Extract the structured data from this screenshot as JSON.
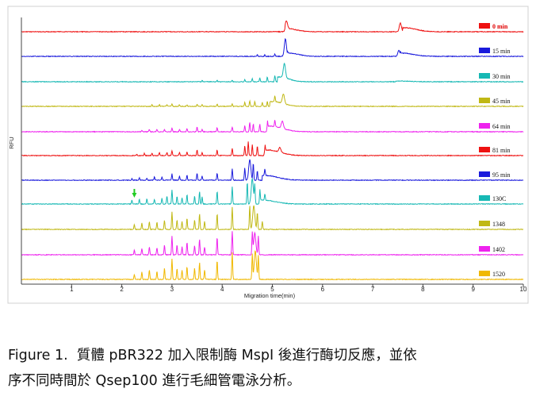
{
  "chart_data": {
    "type": "line",
    "xlabel": "Migration time(min)",
    "ylabel": "RFU",
    "xlim": [
      0,
      10
    ],
    "x_ticks": [
      "1",
      "2",
      "3",
      "4",
      "5",
      "6",
      "7",
      "8",
      "9",
      "10"
    ],
    "grid": false,
    "legend_position": "right",
    "series": [
      {
        "name": "0 min",
        "color": "#ee1111",
        "swatch": "#ee1111",
        "peaks": [
          [
            5.28,
            10
          ],
          [
            7.55,
            11
          ]
        ],
        "spikes": [],
        "bumps": [
          [
            5.3,
            0.25,
            4
          ],
          [
            7.65,
            0.3,
            5
          ]
        ]
      },
      {
        "name": "15 min",
        "color": "#1a1adc",
        "swatch": "#1a1adc",
        "peaks": [
          [
            5.26,
            22
          ],
          [
            7.52,
            8
          ]
        ],
        "spikes": [
          [
            4.7,
            2
          ],
          [
            4.85,
            2
          ],
          [
            5.05,
            3
          ]
        ],
        "bumps": [
          [
            5.35,
            0.25,
            4
          ],
          [
            7.6,
            0.3,
            4
          ]
        ]
      },
      {
        "name": "30 min",
        "color": "#16b8b4",
        "swatch": "#16b8b4",
        "peaks": [
          [
            5.24,
            18
          ]
        ],
        "spikes": [
          [
            3.6,
            2
          ],
          [
            3.9,
            2
          ],
          [
            4.2,
            2
          ],
          [
            4.45,
            3
          ],
          [
            4.6,
            4
          ],
          [
            4.75,
            5
          ],
          [
            4.9,
            6
          ],
          [
            5.05,
            8
          ]
        ],
        "bumps": [
          [
            5.15,
            0.25,
            6
          ],
          [
            7.5,
            0.3,
            1
          ]
        ]
      },
      {
        "name": "45 min",
        "color": "#c0b814",
        "swatch": "#c0b814",
        "peaks": [
          [
            5.22,
            12
          ]
        ],
        "spikes": [
          [
            2.6,
            2
          ],
          [
            2.75,
            2
          ],
          [
            2.9,
            2
          ],
          [
            3.0,
            3
          ],
          [
            3.15,
            2
          ],
          [
            3.3,
            2
          ],
          [
            3.5,
            3
          ],
          [
            3.6,
            2
          ],
          [
            3.9,
            3
          ],
          [
            4.2,
            3
          ],
          [
            4.45,
            5
          ],
          [
            4.55,
            7
          ],
          [
            4.65,
            6
          ],
          [
            4.8,
            5
          ],
          [
            4.9,
            6
          ],
          [
            5.05,
            8
          ]
        ],
        "bumps": [
          [
            5.0,
            0.3,
            6
          ]
        ]
      },
      {
        "name": "64 min",
        "color": "#ee22ee",
        "swatch": "#ee22ee",
        "peaks": [
          [
            5.2,
            9
          ]
        ],
        "spikes": [
          [
            2.4,
            2
          ],
          [
            2.55,
            3
          ],
          [
            2.7,
            3
          ],
          [
            2.85,
            3
          ],
          [
            3.0,
            5
          ],
          [
            3.15,
            3
          ],
          [
            3.3,
            4
          ],
          [
            3.5,
            6
          ],
          [
            3.6,
            3
          ],
          [
            3.9,
            5
          ],
          [
            4.2,
            6
          ],
          [
            4.45,
            8
          ],
          [
            4.55,
            12
          ],
          [
            4.62,
            10
          ],
          [
            4.75,
            10
          ],
          [
            4.9,
            8
          ],
          [
            5.05,
            8
          ]
        ],
        "bumps": [
          [
            4.95,
            0.35,
            7
          ]
        ]
      },
      {
        "name": "81 min",
        "color": "#ee1111",
        "swatch": "#ee1111",
        "peaks": [
          [
            5.15,
            6
          ]
        ],
        "spikes": [
          [
            2.3,
            2
          ],
          [
            2.45,
            3
          ],
          [
            2.6,
            3
          ],
          [
            2.75,
            4
          ],
          [
            2.9,
            4
          ],
          [
            3.0,
            6
          ],
          [
            3.15,
            4
          ],
          [
            3.3,
            5
          ],
          [
            3.5,
            7
          ],
          [
            3.6,
            4
          ],
          [
            3.9,
            7
          ],
          [
            4.2,
            9
          ],
          [
            4.45,
            12
          ],
          [
            4.52,
            18
          ],
          [
            4.6,
            14
          ],
          [
            4.7,
            12
          ],
          [
            4.85,
            9
          ]
        ],
        "bumps": [
          [
            4.9,
            0.35,
            7
          ]
        ]
      },
      {
        "name": "95 min",
        "color": "#1a1adc",
        "swatch": "#1a1adc",
        "peaks": [
          [
            4.55,
            26
          ]
        ],
        "spikes": [
          [
            2.2,
            2
          ],
          [
            2.35,
            3
          ],
          [
            2.5,
            3
          ],
          [
            2.65,
            4
          ],
          [
            2.8,
            4
          ],
          [
            3.0,
            8
          ],
          [
            3.15,
            5
          ],
          [
            3.3,
            6
          ],
          [
            3.5,
            9
          ],
          [
            3.6,
            5
          ],
          [
            3.9,
            9
          ],
          [
            4.2,
            14
          ],
          [
            4.45,
            16
          ],
          [
            4.62,
            22
          ],
          [
            4.7,
            12
          ],
          [
            4.85,
            8
          ]
        ],
        "bumps": [
          [
            4.85,
            0.35,
            6
          ]
        ]
      },
      {
        "name": "130C",
        "color": "#16b8b4",
        "swatch": "#16b8b4",
        "peaks": [
          [
            4.6,
            32
          ]
        ],
        "spikes": [
          [
            2.2,
            5
          ],
          [
            2.35,
            6
          ],
          [
            2.5,
            7
          ],
          [
            2.65,
            6
          ],
          [
            2.8,
            7
          ],
          [
            2.9,
            10
          ],
          [
            3.0,
            18
          ],
          [
            3.1,
            10
          ],
          [
            3.2,
            8
          ],
          [
            3.3,
            12
          ],
          [
            3.45,
            10
          ],
          [
            3.55,
            16
          ],
          [
            3.6,
            9
          ],
          [
            3.9,
            16
          ],
          [
            4.2,
            22
          ],
          [
            4.5,
            28
          ],
          [
            4.65,
            24
          ],
          [
            4.75,
            14
          ],
          [
            4.85,
            8
          ]
        ],
        "bumps": [
          [
            4.8,
            0.35,
            5
          ]
        ]
      },
      {
        "name": "1348",
        "color": "#c0b814",
        "swatch": "#c0b814",
        "peaks": [
          [
            4.63,
            30
          ]
        ],
        "spikes": [
          [
            2.25,
            6
          ],
          [
            2.4,
            8
          ],
          [
            2.55,
            10
          ],
          [
            2.7,
            9
          ],
          [
            2.85,
            12
          ],
          [
            3.0,
            22
          ],
          [
            3.1,
            12
          ],
          [
            3.2,
            10
          ],
          [
            3.3,
            14
          ],
          [
            3.45,
            12
          ],
          [
            3.55,
            20
          ],
          [
            3.65,
            10
          ],
          [
            3.9,
            20
          ],
          [
            4.2,
            28
          ],
          [
            4.55,
            30
          ],
          [
            4.7,
            22
          ],
          [
            4.8,
            10
          ]
        ],
        "bumps": []
      },
      {
        "name": "1402",
        "color": "#ee22ee",
        "swatch": "#ee22ee",
        "peaks": [
          [
            4.65,
            28
          ]
        ],
        "spikes": [
          [
            2.25,
            6
          ],
          [
            2.4,
            8
          ],
          [
            2.55,
            10
          ],
          [
            2.7,
            9
          ],
          [
            2.85,
            12
          ],
          [
            3.0,
            24
          ],
          [
            3.1,
            13
          ],
          [
            3.2,
            10
          ],
          [
            3.3,
            16
          ],
          [
            3.45,
            12
          ],
          [
            3.55,
            20
          ],
          [
            3.65,
            10
          ],
          [
            3.9,
            22
          ],
          [
            4.2,
            30
          ],
          [
            4.6,
            28
          ],
          [
            4.72,
            24
          ]
        ],
        "bumps": []
      },
      {
        "name": "1520",
        "color": "#f0b800",
        "swatch": "#f0b800",
        "peaks": [
          [
            4.66,
            36
          ]
        ],
        "spikes": [
          [
            2.25,
            6
          ],
          [
            2.4,
            9
          ],
          [
            2.55,
            12
          ],
          [
            2.7,
            10
          ],
          [
            2.85,
            14
          ],
          [
            3.0,
            26
          ],
          [
            3.1,
            14
          ],
          [
            3.2,
            12
          ],
          [
            3.3,
            16
          ],
          [
            3.45,
            14
          ],
          [
            3.55,
            22
          ],
          [
            3.65,
            12
          ],
          [
            3.9,
            24
          ],
          [
            4.2,
            34
          ],
          [
            4.6,
            32
          ],
          [
            4.72,
            30
          ]
        ],
        "bumps": []
      }
    ],
    "annotations": [
      {
        "type": "arrow",
        "x": 2.25,
        "series": "130C",
        "color": "#22cc22"
      }
    ]
  },
  "caption": {
    "line1": "Figure 1.  質體 pBR322 加入限制酶 MspI 後進行酶切反應，並依",
    "line2": "序不同時間於 Qsep100 進行毛細管電泳分析。"
  }
}
